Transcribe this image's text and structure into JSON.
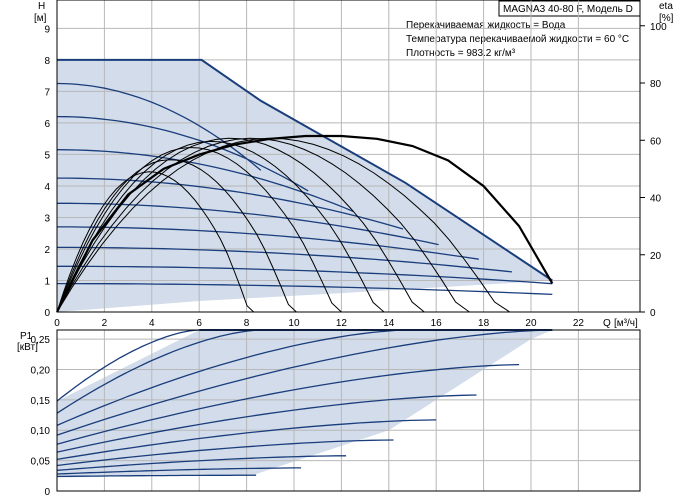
{
  "chart_data": [
    {
      "type": "line",
      "title": "MAGNA3 40-80 F, Модель D",
      "notes": [
        "Перекачиваемая жидкость = Вода",
        "Температура перекачиваемой жидкости = 60 °C",
        "Плотность = 983.2 кг/м³"
      ],
      "ylabel": "H",
      "yunit": "[м]",
      "y2label": "eta",
      "y2unit": "[%]",
      "xlabel": "Q",
      "xunit": "[м³/ч]",
      "xlim": [
        0,
        24.6
      ],
      "ylim": [
        0,
        9.9
      ],
      "y2lim": [
        0,
        109
      ],
      "xticks": [
        "0",
        "2",
        "4",
        "6",
        "8",
        "10",
        "12",
        "14",
        "16",
        "18",
        "20",
        "22"
      ],
      "yticks": [
        "0",
        "1",
        "2",
        "3",
        "4",
        "5",
        "6",
        "7",
        "8",
        "9"
      ],
      "y2ticks": [
        "0",
        "20",
        "40",
        "60",
        "80",
        "100"
      ],
      "grid": true,
      "colors": {
        "curve": "#1a3d7c",
        "fill": "#d2dcea",
        "eta": "#000000"
      },
      "envelope": [
        [
          0,
          8.0
        ],
        [
          6.1,
          8.0
        ],
        [
          8.6,
          6.7
        ],
        [
          14.7,
          4.1
        ],
        [
          20.9,
          1.0
        ],
        [
          12,
          0.6
        ],
        [
          6,
          0.35
        ],
        [
          0,
          0
        ]
      ],
      "speed_curves": [
        {
          "h0": 8.0,
          "qmax": 6.1
        },
        {
          "h0": 7.25,
          "qmax": 8.6
        },
        {
          "h0": 6.2,
          "qmax": 10.6
        },
        {
          "h0": 5.15,
          "qmax": 12.5
        },
        {
          "h0": 4.25,
          "qmax": 14.6
        },
        {
          "h0": 3.45,
          "qmax": 16.1
        },
        {
          "h0": 2.7,
          "qmax": 17.8
        },
        {
          "h0": 2.05,
          "qmax": 19.2
        },
        {
          "h0": 1.45,
          "qmax": 20.9
        },
        {
          "h0": 0.9,
          "qmax": 20.9
        }
      ],
      "eta_max": {
        "x": [
          0,
          1.5,
          3,
          4.5,
          6,
          7.5,
          9,
          10.5,
          12,
          13.5,
          15,
          16.5,
          18,
          19.5,
          20.9
        ],
        "y": [
          0,
          25,
          41,
          50,
          55,
          58.5,
          60.5,
          61.5,
          61.5,
          60.5,
          58,
          53,
          44,
          30,
          10
        ]
      },
      "eta_curves": [
        {
          "qmax": 8.3,
          "peak": 46
        },
        {
          "qmax": 10.1,
          "peak": 50
        },
        {
          "qmax": 12.0,
          "peak": 54
        },
        {
          "qmax": 13.8,
          "peak": 56
        },
        {
          "qmax": 15.5,
          "peak": 57
        },
        {
          "qmax": 17.4,
          "peak": 57
        },
        {
          "qmax": 19.1,
          "peak": 57
        }
      ]
    },
    {
      "type": "line",
      "ylabel": "P1",
      "yunit": "[кВт]",
      "ylim": [
        0,
        0.265
      ],
      "xlim": [
        0,
        24.6
      ],
      "yticks": [
        "0",
        "0,05",
        "0,10",
        "0,15",
        "0,20",
        "0,25"
      ],
      "grid": true,
      "colors": {
        "curve": "#1a3d7c",
        "fill": "#d2dcea"
      },
      "envelope": [
        [
          0,
          0.148
        ],
        [
          6,
          0.265
        ],
        [
          20.9,
          0.265
        ],
        [
          20,
          0.25
        ],
        [
          14,
          0.1
        ],
        [
          8.4,
          0.028
        ],
        [
          0,
          0.022
        ]
      ],
      "power_curves": [
        {
          "p0": 0.148,
          "qmax": 6.0,
          "pmax": 0.265
        },
        {
          "p0": 0.128,
          "qmax": 8.6,
          "pmax": 0.265
        },
        {
          "p0": 0.108,
          "qmax": 14.8,
          "pmax": 0.265
        },
        {
          "p0": 0.092,
          "qmax": 20.9,
          "pmax": 0.265
        },
        {
          "p0": 0.077,
          "qmax": 19.5,
          "pmax": 0.208
        },
        {
          "p0": 0.064,
          "qmax": 17.7,
          "pmax": 0.158
        },
        {
          "p0": 0.052,
          "qmax": 16.0,
          "pmax": 0.117
        },
        {
          "p0": 0.042,
          "qmax": 14.2,
          "pmax": 0.084
        },
        {
          "p0": 0.034,
          "qmax": 12.2,
          "pmax": 0.058
        },
        {
          "p0": 0.028,
          "qmax": 10.3,
          "pmax": 0.038
        },
        {
          "p0": 0.024,
          "qmax": 8.4,
          "pmax": 0.026
        }
      ]
    }
  ]
}
